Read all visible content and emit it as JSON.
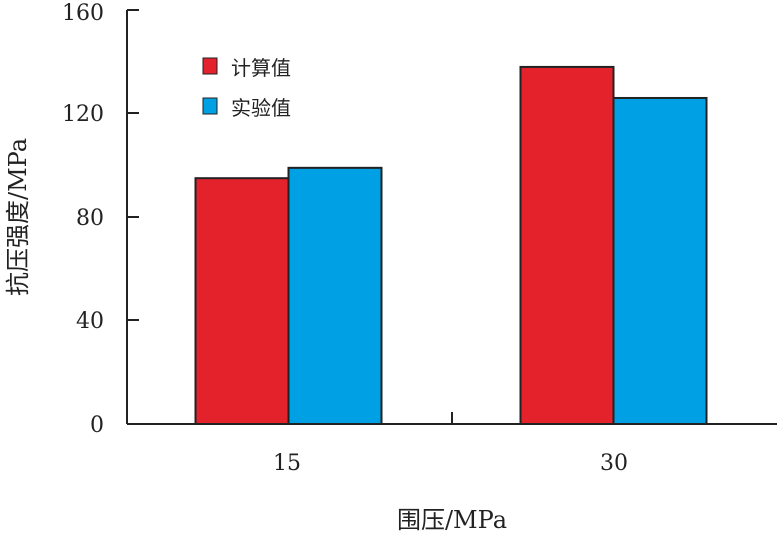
{
  "chart_data": {
    "type": "bar",
    "xlabel": "围压/MPa",
    "ylabel": "抗压强度/MPa",
    "categories": [
      "15",
      "30"
    ],
    "ylim": [
      0,
      160
    ],
    "yticks": [
      "0",
      "40",
      "80",
      "120",
      "160"
    ],
    "grid": false,
    "legend_position": "top-left",
    "series": [
      {
        "name": "计算值",
        "color": "#e3222c",
        "values": [
          95,
          138
        ]
      },
      {
        "name": "实验值",
        "color": "#00a0e4",
        "values": [
          99,
          126
        ]
      }
    ]
  }
}
